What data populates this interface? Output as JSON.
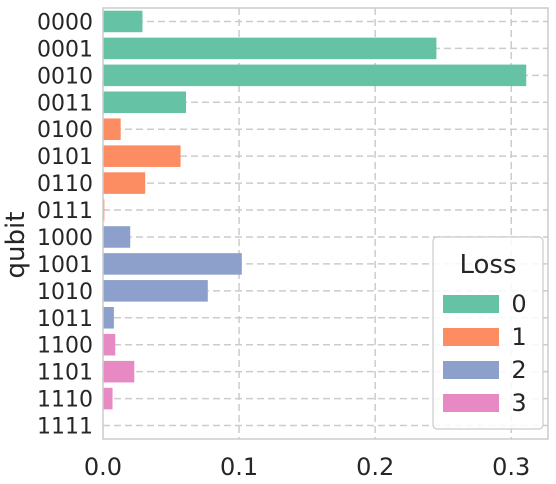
{
  "chart_data": {
    "type": "bar",
    "orientation": "horizontal",
    "ylabel": "qubit",
    "xlabel": "",
    "xlim": [
      0,
      0.327
    ],
    "xticks": [
      0.0,
      0.1,
      0.2,
      0.3
    ],
    "xtick_labels": [
      "0.0",
      "0.1",
      "0.2",
      "0.3"
    ],
    "grid": true,
    "grid_style": "dashed",
    "legend": {
      "title": "Loss",
      "placement": "bottom-right"
    },
    "categories": [
      "0000",
      "0001",
      "0010",
      "0011",
      "0100",
      "0101",
      "0110",
      "0111",
      "1000",
      "1001",
      "1010",
      "1011",
      "1100",
      "1101",
      "1110",
      "1111"
    ],
    "values": [
      0.029,
      0.245,
      0.311,
      0.061,
      0.013,
      0.057,
      0.031,
      0.001,
      0.02,
      0.102,
      0.077,
      0.008,
      0.009,
      0.023,
      0.007,
      0.0
    ],
    "series": [
      {
        "name": "0",
        "color": "#66c2a5",
        "categories": [
          "0000",
          "0001",
          "0010",
          "0011"
        ]
      },
      {
        "name": "1",
        "color": "#fc8d62",
        "categories": [
          "0100",
          "0101",
          "0110",
          "0111"
        ]
      },
      {
        "name": "2",
        "color": "#8da0cb",
        "categories": [
          "1000",
          "1001",
          "1010",
          "1011"
        ]
      },
      {
        "name": "3",
        "color": "#e78ac3",
        "categories": [
          "1100",
          "1101",
          "1110",
          "1111"
        ]
      }
    ]
  }
}
